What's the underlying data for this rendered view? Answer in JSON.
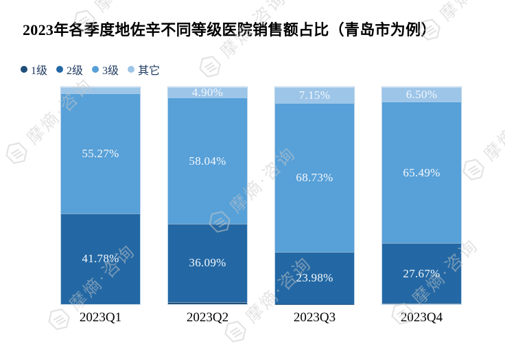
{
  "chart": {
    "title": "2023年各季度地佐辛不同等级医院销售额占比（青岛市为例）"
  },
  "watermark": {
    "text": "摩熵·咨询"
  },
  "chart_data": {
    "type": "bar",
    "stacked": true,
    "title": "2023年各季度地佐辛不同等级医院销售额占比（青岛市为例）",
    "xlabel": "",
    "ylabel": "",
    "value_unit": "%",
    "ylim": [
      0,
      100
    ],
    "grid": false,
    "legend_position": "top-left",
    "unlabeled_segments_estimated": true,
    "categories": [
      "2023Q1",
      "2023Q2",
      "2023Q3",
      "2023Q4"
    ],
    "series": [
      {
        "name": "1级",
        "color": "#1F4E79",
        "values": [
          0,
          0.97,
          0.14,
          0.34
        ],
        "labels": [
          "",
          "",
          "",
          ""
        ]
      },
      {
        "name": "2级",
        "color": "#2368A4",
        "values": [
          41.78,
          36.09,
          23.98,
          27.67
        ],
        "labels": [
          "41.78%",
          "36.09%",
          "23.98%",
          "27.67%"
        ]
      },
      {
        "name": "3级",
        "color": "#57A0D8",
        "values": [
          55.27,
          58.04,
          68.73,
          65.49
        ],
        "labels": [
          "55.27%",
          "58.04%",
          "68.73%",
          "65.49%"
        ]
      },
      {
        "name": "其它",
        "color": "#9CC5E8",
        "values": [
          2.95,
          4.9,
          7.15,
          6.5
        ],
        "labels": [
          "",
          "4.90%",
          "7.15%",
          "6.50%"
        ]
      }
    ]
  }
}
